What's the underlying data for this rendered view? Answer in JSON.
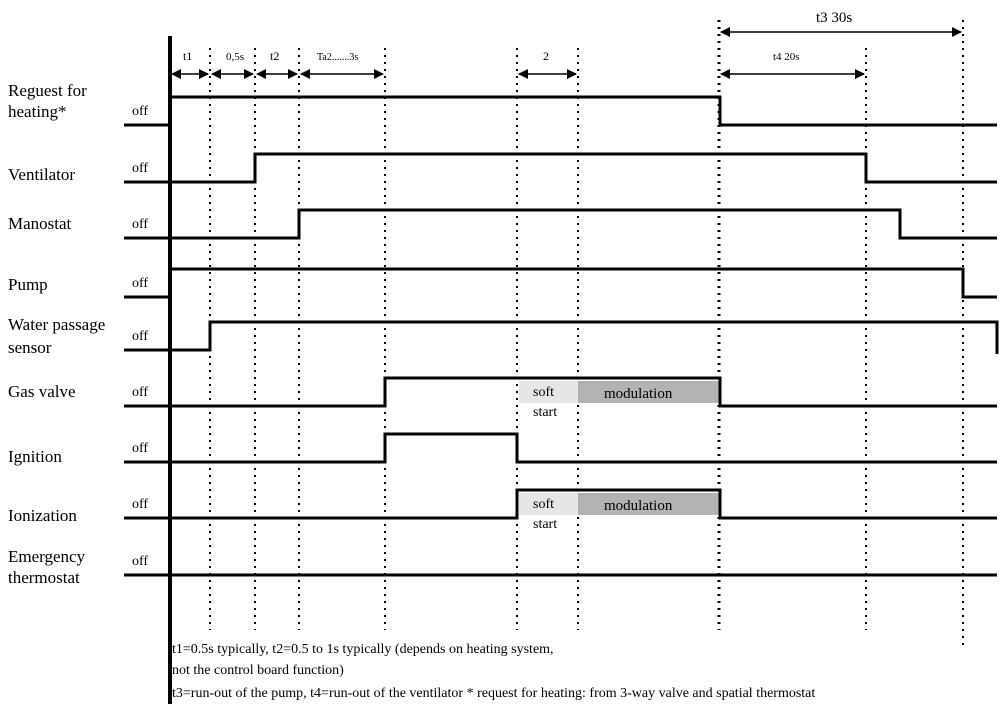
{
  "signals": [
    {
      "id": "request",
      "label_lines": [
        "Reguest for",
        "heating*"
      ],
      "off": "off",
      "edges": [
        720
      ],
      "initial": 1
    },
    {
      "id": "ventilator",
      "label_lines": [
        "Ventilator"
      ],
      "off": "off",
      "edges": [
        255,
        866
      ],
      "initial": 0
    },
    {
      "id": "manostat",
      "label_lines": [
        "Manostat"
      ],
      "off": "off",
      "edges": [
        299,
        900
      ],
      "initial": 0
    },
    {
      "id": "pump",
      "label_lines": [
        "Pump"
      ],
      "off": "off",
      "edges": [
        963
      ],
      "initial": 1
    },
    {
      "id": "water-sensor",
      "label_lines": [
        "Water passage",
        "sensor"
      ],
      "off": "off",
      "edges": [
        210
      ],
      "initial": 0,
      "end_drop": true
    },
    {
      "id": "gas-valve",
      "label_lines": [
        "Gas valve"
      ],
      "off": "off",
      "edges": [
        385,
        720
      ],
      "initial": 0,
      "soft_start": "soft\nstart",
      "modulation": "modulation"
    },
    {
      "id": "ignition",
      "label_lines": [
        "Ignition"
      ],
      "off": "off",
      "edges": [
        385,
        517
      ],
      "initial": 0
    },
    {
      "id": "ionization",
      "label_lines": [
        "Ionization"
      ],
      "off": "off",
      "edges": [
        517,
        720
      ],
      "initial": 0,
      "soft_start": "soft\nstart",
      "modulation": "modulation"
    },
    {
      "id": "emergency",
      "label_lines": [
        "Emergency",
        "thermostat"
      ],
      "off": "off",
      "edges": [],
      "initial": 0
    }
  ],
  "timing": {
    "t1": "t1",
    "half": "0,5s",
    "t2": "t2",
    "ta2": "Ta2.......3s",
    "two": "2",
    "t4": "t4 20s",
    "t3": "t3  30s"
  },
  "box_labels": {
    "soft_line1": "soft",
    "soft_line2": "start",
    "modulation": "modulation"
  },
  "notes": [
    "t1=0.5s typically, t2=0.5 to 1s typically (depends on heating system,",
    "not the control board function)",
    "t3=run-out of the pump, t4=run-out of the ventilator    * request for heating: from 3-way valve and spatial thermostat"
  ],
  "colors": {
    "soft_box": "#e6e6e6",
    "modulation_box": "#b3b3b3",
    "line": "#000000"
  }
}
